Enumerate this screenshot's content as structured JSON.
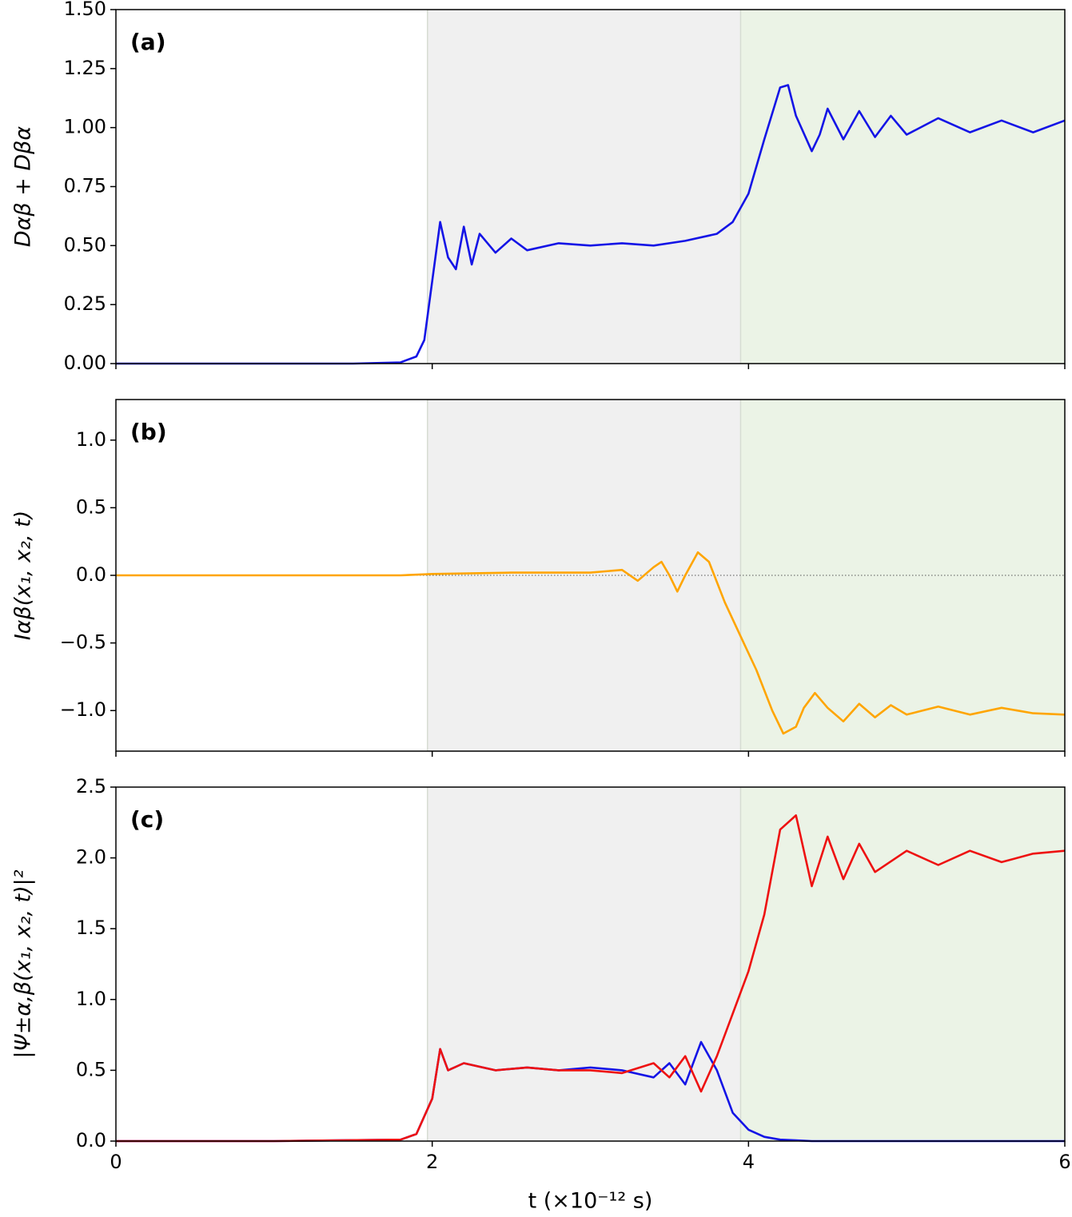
{
  "chart_data": [
    {
      "type": "line",
      "panel_label": "(a)",
      "ylabel": "Dαβ + Dβα",
      "xlim": [
        0,
        6
      ],
      "xticks": [
        0,
        2,
        4,
        6
      ],
      "xtick_labels": false,
      "ylim": [
        0,
        1.5
      ],
      "yticks": [
        {
          "value": 0,
          "label": "0.00"
        },
        {
          "value": 0.25,
          "label": "0.25"
        },
        {
          "value": 0.5,
          "label": "0.50"
        },
        {
          "value": 0.75,
          "label": "0.75"
        },
        {
          "value": 1,
          "label": "1.00"
        },
        {
          "value": 1.25,
          "label": "1.25"
        },
        {
          "value": 1.5,
          "label": "1.50"
        }
      ],
      "shaded_regions": [
        {
          "xlim": [
            1.97,
            3.95
          ],
          "color": "#f0f0f0"
        },
        {
          "xlim": [
            3.95,
            6
          ],
          "color": "#ebf3e6"
        }
      ],
      "series": [
        {
          "color": "#1414e6",
          "x": [
            0,
            0.5,
            1.0,
            1.5,
            1.8,
            1.9,
            1.95,
            2.0,
            2.05,
            2.1,
            2.15,
            2.2,
            2.25,
            2.3,
            2.4,
            2.5,
            2.6,
            2.8,
            3.0,
            3.2,
            3.4,
            3.6,
            3.8,
            3.9,
            4.0,
            4.1,
            4.2,
            4.25,
            4.3,
            4.4,
            4.45,
            4.5,
            4.6,
            4.7,
            4.8,
            4.9,
            5.0,
            5.2,
            5.4,
            5.6,
            5.8,
            6.0
          ],
          "values": [
            0,
            0,
            0,
            0,
            0.005,
            0.03,
            0.1,
            0.35,
            0.6,
            0.45,
            0.4,
            0.58,
            0.42,
            0.55,
            0.47,
            0.53,
            0.48,
            0.51,
            0.5,
            0.51,
            0.5,
            0.52,
            0.55,
            0.6,
            0.72,
            0.95,
            1.17,
            1.18,
            1.05,
            0.9,
            0.97,
            1.08,
            0.95,
            1.07,
            0.96,
            1.05,
            0.97,
            1.04,
            0.98,
            1.03,
            0.98,
            1.03
          ]
        }
      ]
    },
    {
      "type": "line",
      "panel_label": "(b)",
      "ylabel": "Iαβ(x₁, x₂, t)",
      "xlim": [
        0,
        6
      ],
      "xticks": [
        0,
        2,
        4,
        6
      ],
      "xtick_labels": false,
      "ylim": [
        -1.3,
        1.3
      ],
      "yticks": [
        {
          "value": -1,
          "label": "−1.0"
        },
        {
          "value": -0.5,
          "label": "−0.5"
        },
        {
          "value": 0,
          "label": "0.0"
        },
        {
          "value": 0.5,
          "label": "0.5"
        },
        {
          "value": 1,
          "label": "1.0"
        }
      ],
      "hline": 0,
      "shaded_regions": [
        {
          "xlim": [
            1.97,
            3.95
          ],
          "color": "#f0f0f0"
        },
        {
          "xlim": [
            3.95,
            6
          ],
          "color": "#ebf3e6"
        }
      ],
      "series": [
        {
          "color": "#ffa500",
          "x": [
            0,
            1,
            1.8,
            2.0,
            2.5,
            3.0,
            3.2,
            3.3,
            3.4,
            3.45,
            3.5,
            3.55,
            3.6,
            3.68,
            3.75,
            3.85,
            3.95,
            4.05,
            4.15,
            4.22,
            4.3,
            4.35,
            4.42,
            4.5,
            4.6,
            4.7,
            4.8,
            4.9,
            5.0,
            5.2,
            5.4,
            5.6,
            5.8,
            6.0
          ],
          "values": [
            0,
            0,
            0,
            0.01,
            0.02,
            0.02,
            0.04,
            -0.04,
            0.06,
            0.1,
            0.0,
            -0.12,
            0.0,
            0.17,
            0.1,
            -0.2,
            -0.45,
            -0.7,
            -1.0,
            -1.17,
            -1.12,
            -0.98,
            -0.87,
            -0.98,
            -1.08,
            -0.95,
            -1.05,
            -0.96,
            -1.03,
            -0.97,
            -1.03,
            -0.98,
            -1.02,
            -1.03
          ]
        }
      ]
    },
    {
      "type": "line",
      "panel_label": "(c)",
      "ylabel": "|Ψ±α,β(x₁, x₂, t)|²",
      "xlabel": "t (×10⁻¹² s)",
      "xlim": [
        0,
        6
      ],
      "xticks": [
        0,
        2,
        4,
        6
      ],
      "xtick_labels": true,
      "ylim": [
        0,
        2.5
      ],
      "yticks": [
        {
          "value": 0,
          "label": "0.0"
        },
        {
          "value": 0.5,
          "label": "0.5"
        },
        {
          "value": 1,
          "label": "1.0"
        },
        {
          "value": 1.5,
          "label": "1.5"
        },
        {
          "value": 2,
          "label": "2.0"
        },
        {
          "value": 2.5,
          "label": "2.5"
        }
      ],
      "shaded_regions": [
        {
          "xlim": [
            1.97,
            3.95
          ],
          "color": "#f0f0f0"
        },
        {
          "xlim": [
            3.95,
            6
          ],
          "color": "#ebf3e6"
        }
      ],
      "series": [
        {
          "color": "#1414e6",
          "x": [
            0,
            1,
            1.8,
            1.9,
            2.0,
            2.05,
            2.1,
            2.2,
            2.4,
            2.6,
            2.8,
            3.0,
            3.2,
            3.4,
            3.5,
            3.6,
            3.7,
            3.8,
            3.9,
            4.0,
            4.1,
            4.2,
            4.3,
            4.4,
            4.5,
            4.6,
            4.7,
            4.8,
            5.0,
            5.2,
            5.4,
            5.6,
            5.8,
            6.0
          ],
          "values": [
            0,
            0,
            0.01,
            0.05,
            0.3,
            0.65,
            0.5,
            0.55,
            0.5,
            0.52,
            0.5,
            0.52,
            0.5,
            0.45,
            0.55,
            0.4,
            0.7,
            0.5,
            0.2,
            0.08,
            0.03,
            0.01,
            0.005,
            0,
            0,
            0,
            0,
            0,
            0,
            0,
            0,
            0,
            0,
            0
          ]
        },
        {
          "color": "#ee1111",
          "x": [
            0,
            1,
            1.8,
            1.9,
            2.0,
            2.05,
            2.1,
            2.2,
            2.4,
            2.6,
            2.8,
            3.0,
            3.2,
            3.4,
            3.5,
            3.6,
            3.7,
            3.8,
            3.9,
            4.0,
            4.1,
            4.2,
            4.3,
            4.4,
            4.5,
            4.6,
            4.7,
            4.8,
            5.0,
            5.2,
            5.4,
            5.6,
            5.8,
            6.0
          ],
          "values": [
            0,
            0,
            0.01,
            0.05,
            0.3,
            0.65,
            0.5,
            0.55,
            0.5,
            0.52,
            0.5,
            0.5,
            0.48,
            0.55,
            0.45,
            0.6,
            0.35,
            0.6,
            0.9,
            1.2,
            1.6,
            2.2,
            2.3,
            1.8,
            2.15,
            1.85,
            2.1,
            1.9,
            2.05,
            1.95,
            2.05,
            1.97,
            2.03,
            2.05
          ]
        }
      ]
    }
  ]
}
